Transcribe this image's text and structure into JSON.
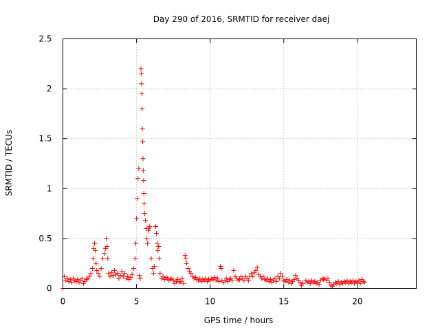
{
  "chart_data": {
    "type": "scatter",
    "title": "Day 290 of 2016, SRMTID for receiver daej",
    "xlabel": "GPS time / hours",
    "ylabel": "SRMTID / TECUs",
    "xlim": [
      0,
      24
    ],
    "ylim": [
      0,
      2.5
    ],
    "xticks": [
      0,
      5,
      10,
      15,
      20
    ],
    "yticks": [
      0,
      0.5,
      1,
      1.5,
      2,
      2.5
    ],
    "xtick_labels": [
      "0",
      "5",
      "10",
      "15",
      "20"
    ],
    "ytick_labels": [
      "0",
      "0.5",
      "1",
      "1.5",
      "2",
      "2.5"
    ],
    "grid": true,
    "marker": "+",
    "color": "#ff0000",
    "series": [
      {
        "points": [
          [
            0.0,
            0.0
          ],
          [
            0.1,
            0.12
          ],
          [
            0.2,
            0.08
          ],
          [
            0.3,
            0.1
          ],
          [
            0.4,
            0.07
          ],
          [
            0.5,
            0.09
          ],
          [
            0.6,
            0.06
          ],
          [
            0.7,
            0.1
          ],
          [
            0.8,
            0.08
          ],
          [
            0.9,
            0.07
          ],
          [
            1.0,
            0.09
          ],
          [
            1.1,
            0.06
          ],
          [
            1.2,
            0.08
          ],
          [
            1.3,
            0.1
          ],
          [
            1.4,
            0.05
          ],
          [
            1.5,
            0.07
          ],
          [
            1.6,
            0.09
          ],
          [
            1.7,
            0.1
          ],
          [
            1.8,
            0.12
          ],
          [
            1.9,
            0.15
          ],
          [
            2.0,
            0.2
          ],
          [
            2.05,
            0.3
          ],
          [
            2.1,
            0.4
          ],
          [
            2.15,
            0.45
          ],
          [
            2.2,
            0.38
          ],
          [
            2.25,
            0.25
          ],
          [
            2.3,
            0.18
          ],
          [
            2.4,
            0.15
          ],
          [
            2.5,
            0.12
          ],
          [
            2.6,
            0.2
          ],
          [
            2.7,
            0.3
          ],
          [
            2.8,
            0.35
          ],
          [
            2.9,
            0.4
          ],
          [
            2.95,
            0.5
          ],
          [
            3.0,
            0.42
          ],
          [
            3.05,
            0.3
          ],
          [
            3.1,
            0.15
          ],
          [
            3.2,
            0.12
          ],
          [
            3.3,
            0.16
          ],
          [
            3.4,
            0.13
          ],
          [
            3.5,
            0.18
          ],
          [
            3.6,
            0.14
          ],
          [
            3.7,
            0.15
          ],
          [
            3.8,
            0.1
          ],
          [
            3.9,
            0.13
          ],
          [
            4.0,
            0.17
          ],
          [
            4.1,
            0.12
          ],
          [
            4.2,
            0.15
          ],
          [
            4.3,
            0.1
          ],
          [
            4.4,
            0.12
          ],
          [
            4.5,
            0.09
          ],
          [
            4.6,
            0.11
          ],
          [
            4.7,
            0.14
          ],
          [
            4.8,
            0.2
          ],
          [
            4.9,
            0.3
          ],
          [
            4.95,
            0.45
          ],
          [
            5.0,
            0.7
          ],
          [
            5.05,
            0.9
          ],
          [
            5.1,
            1.1
          ],
          [
            5.15,
            1.2
          ],
          [
            5.2,
            0.13
          ],
          [
            5.25,
            0.1
          ],
          [
            5.3,
            2.2
          ],
          [
            5.32,
            2.15
          ],
          [
            5.34,
            2.05
          ],
          [
            5.36,
            1.95
          ],
          [
            5.38,
            1.8
          ],
          [
            5.4,
            1.6
          ],
          [
            5.42,
            1.47
          ],
          [
            5.44,
            1.3
          ],
          [
            5.46,
            1.18
          ],
          [
            5.48,
            1.08
          ],
          [
            5.5,
            0.95
          ],
          [
            5.52,
            0.85
          ],
          [
            5.55,
            0.75
          ],
          [
            5.6,
            0.68
          ],
          [
            5.65,
            0.6
          ],
          [
            5.7,
            0.5
          ],
          [
            5.75,
            0.45
          ],
          [
            5.8,
            0.58
          ],
          [
            5.85,
            0.6
          ],
          [
            5.9,
            0.62
          ],
          [
            6.0,
            0.3
          ],
          [
            6.1,
            0.2
          ],
          [
            6.15,
            0.15
          ],
          [
            6.2,
            0.22
          ],
          [
            6.3,
            0.62
          ],
          [
            6.35,
            0.55
          ],
          [
            6.4,
            0.45
          ],
          [
            6.45,
            0.38
          ],
          [
            6.5,
            0.42
          ],
          [
            6.55,
            0.3
          ],
          [
            6.6,
            0.15
          ],
          [
            6.7,
            0.1
          ],
          [
            6.8,
            0.12
          ],
          [
            6.9,
            0.09
          ],
          [
            7.0,
            0.11
          ],
          [
            7.1,
            0.1
          ],
          [
            7.2,
            0.08
          ],
          [
            7.3,
            0.09
          ],
          [
            7.4,
            0.1
          ],
          [
            7.5,
            0.08
          ],
          [
            7.6,
            0.05
          ],
          [
            7.7,
            0.07
          ],
          [
            7.8,
            0.09
          ],
          [
            7.9,
            0.06
          ],
          [
            8.0,
            0.07
          ],
          [
            8.1,
            0.1
          ],
          [
            8.2,
            0.05
          ],
          [
            8.3,
            0.33
          ],
          [
            8.35,
            0.3
          ],
          [
            8.4,
            0.25
          ],
          [
            8.5,
            0.2
          ],
          [
            8.6,
            0.17
          ],
          [
            8.7,
            0.15
          ],
          [
            8.8,
            0.12
          ],
          [
            8.9,
            0.1
          ],
          [
            9.0,
            0.11
          ],
          [
            9.1,
            0.09
          ],
          [
            9.2,
            0.08
          ],
          [
            9.3,
            0.1
          ],
          [
            9.4,
            0.07
          ],
          [
            9.5,
            0.09
          ],
          [
            9.6,
            0.08
          ],
          [
            9.7,
            0.1
          ],
          [
            9.8,
            0.07
          ],
          [
            9.9,
            0.09
          ],
          [
            10.0,
            0.08
          ],
          [
            10.1,
            0.1
          ],
          [
            10.2,
            0.09
          ],
          [
            10.3,
            0.11
          ],
          [
            10.4,
            0.08
          ],
          [
            10.5,
            0.1
          ],
          [
            10.6,
            0.07
          ],
          [
            10.7,
            0.22
          ],
          [
            10.75,
            0.2
          ],
          [
            10.8,
            0.08
          ],
          [
            10.9,
            0.06
          ],
          [
            11.0,
            0.08
          ],
          [
            11.1,
            0.1
          ],
          [
            11.2,
            0.07
          ],
          [
            11.3,
            0.09
          ],
          [
            11.4,
            0.1
          ],
          [
            11.5,
            0.08
          ],
          [
            11.6,
            0.18
          ],
          [
            11.7,
            0.12
          ],
          [
            11.8,
            0.1
          ],
          [
            11.9,
            0.08
          ],
          [
            12.0,
            0.09
          ],
          [
            12.1,
            0.12
          ],
          [
            12.2,
            0.1
          ],
          [
            12.3,
            0.08
          ],
          [
            12.4,
            0.12
          ],
          [
            12.5,
            0.1
          ],
          [
            12.6,
            0.08
          ],
          [
            12.7,
            0.12
          ],
          [
            12.8,
            0.15
          ],
          [
            12.9,
            0.12
          ],
          [
            13.0,
            0.16
          ],
          [
            13.1,
            0.18
          ],
          [
            13.2,
            0.21
          ],
          [
            13.3,
            0.14
          ],
          [
            13.4,
            0.12
          ],
          [
            13.5,
            0.1
          ],
          [
            13.6,
            0.12
          ],
          [
            13.7,
            0.09
          ],
          [
            13.8,
            0.08
          ],
          [
            13.9,
            0.1
          ],
          [
            14.0,
            0.07
          ],
          [
            14.1,
            0.09
          ],
          [
            14.2,
            0.06
          ],
          [
            14.3,
            0.08
          ],
          [
            14.4,
            0.1
          ],
          [
            14.5,
            0.07
          ],
          [
            14.6,
            0.12
          ],
          [
            14.7,
            0.1
          ],
          [
            14.8,
            0.15
          ],
          [
            14.9,
            0.12
          ],
          [
            15.0,
            0.08
          ],
          [
            15.1,
            0.07
          ],
          [
            15.2,
            0.09
          ],
          [
            15.3,
            0.06
          ],
          [
            15.4,
            0.08
          ],
          [
            15.5,
            0.05
          ],
          [
            15.6,
            0.07
          ],
          [
            15.7,
            0.09
          ],
          [
            15.8,
            0.13
          ],
          [
            15.9,
            0.1
          ],
          [
            16.0,
            0.08
          ],
          [
            16.1,
            0.06
          ],
          [
            16.2,
            0.03
          ],
          [
            16.3,
            0.05
          ],
          [
            16.5,
            0.08
          ],
          [
            16.6,
            0.06
          ],
          [
            16.7,
            0.07
          ],
          [
            16.8,
            0.05
          ],
          [
            16.9,
            0.08
          ],
          [
            17.0,
            0.06
          ],
          [
            17.1,
            0.07
          ],
          [
            17.2,
            0.05
          ],
          [
            17.3,
            0.06
          ],
          [
            17.4,
            0.04
          ],
          [
            17.5,
            0.08
          ],
          [
            17.6,
            0.1
          ],
          [
            17.7,
            0.09
          ],
          [
            17.8,
            0.1
          ],
          [
            17.9,
            0.08
          ],
          [
            18.0,
            0.1
          ],
          [
            18.1,
            0.06
          ],
          [
            18.2,
            0.03
          ],
          [
            18.3,
            0.02
          ],
          [
            18.4,
            0.04
          ],
          [
            18.5,
            0.06
          ],
          [
            18.6,
            0.05
          ],
          [
            18.7,
            0.07
          ],
          [
            18.8,
            0.04
          ],
          [
            18.9,
            0.06
          ],
          [
            19.0,
            0.05
          ],
          [
            19.1,
            0.07
          ],
          [
            19.2,
            0.06
          ],
          [
            19.3,
            0.08
          ],
          [
            19.4,
            0.05
          ],
          [
            19.5,
            0.07
          ],
          [
            19.6,
            0.06
          ],
          [
            19.7,
            0.08
          ],
          [
            19.8,
            0.05
          ],
          [
            19.9,
            0.07
          ],
          [
            20.0,
            0.06
          ],
          [
            20.1,
            0.08
          ],
          [
            20.2,
            0.05
          ],
          [
            20.3,
            0.09
          ],
          [
            20.4,
            0.07
          ],
          [
            20.5,
            0.06
          ]
        ]
      }
    ]
  }
}
